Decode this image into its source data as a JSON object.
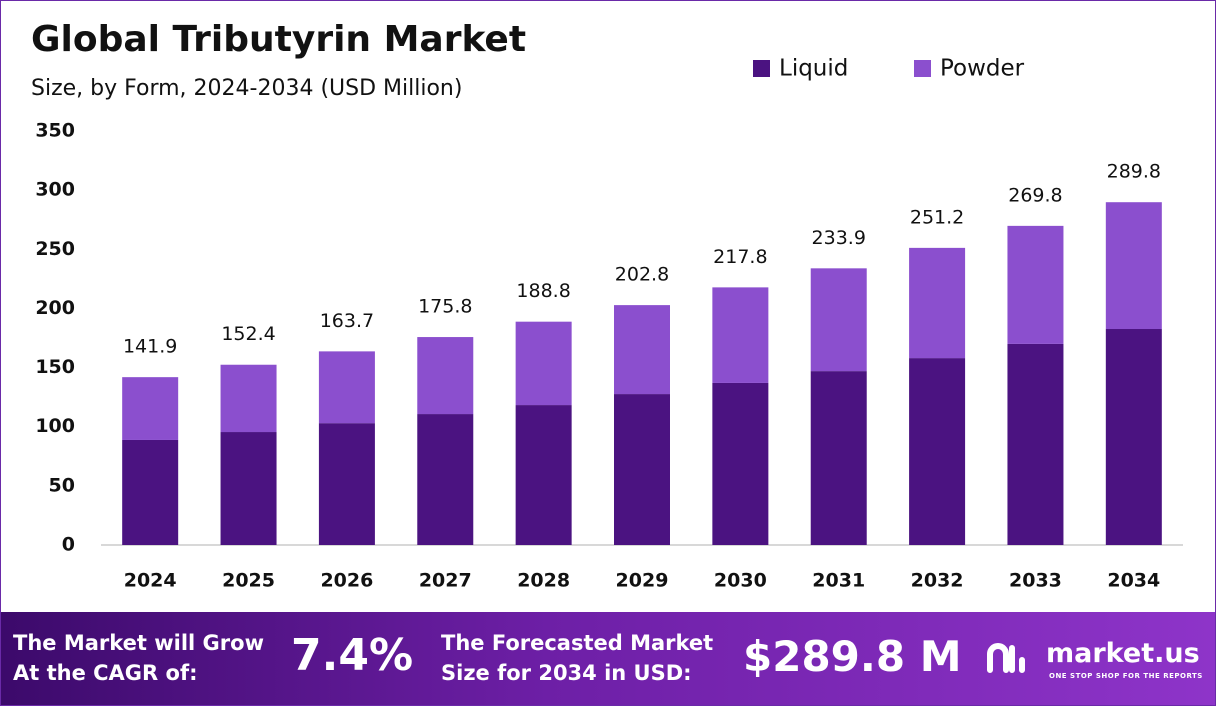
{
  "chart_data": {
    "type": "stacked_bar",
    "title": "Global Tributyrin Market",
    "subtitle": "Size, by Form, 2024-2034 (USD Million)",
    "categories": [
      "2024",
      "2025",
      "2026",
      "2027",
      "2028",
      "2029",
      "2030",
      "2031",
      "2032",
      "2033",
      "2034"
    ],
    "series": [
      {
        "name": "Liquid",
        "color": "#4b1381",
        "values": [
          88.8,
          95.5,
          103,
          110.7,
          118.3,
          127.6,
          137,
          147,
          158,
          170,
          182.6
        ]
      },
      {
        "name": "Powder",
        "color": "#8b4fce",
        "values": [
          53.1,
          56.9,
          60.7,
          65.1,
          70.5,
          75.2,
          80.8,
          86.9,
          93.2,
          99.8,
          107.2
        ]
      }
    ],
    "total_labels": [
      141.9,
      152.4,
      163.7,
      175.8,
      188.8,
      202.8,
      217.8,
      233.9,
      251.2,
      269.8,
      289.8
    ],
    "ylim": [
      0,
      350
    ],
    "yticks": [
      0,
      50,
      100,
      150,
      200,
      250,
      300,
      350
    ],
    "grid": false,
    "legend": "top-right"
  },
  "footer": {
    "cagr_text": "The Market will Grow At the CAGR of:",
    "cagr_value": "7.4%",
    "forecast_text": "The Forecasted Market Size for 2034 in USD:",
    "forecast_value": "$289.8 M",
    "brand": "market.us",
    "tagline": "ONE STOP SHOP FOR THE REPORTS"
  }
}
